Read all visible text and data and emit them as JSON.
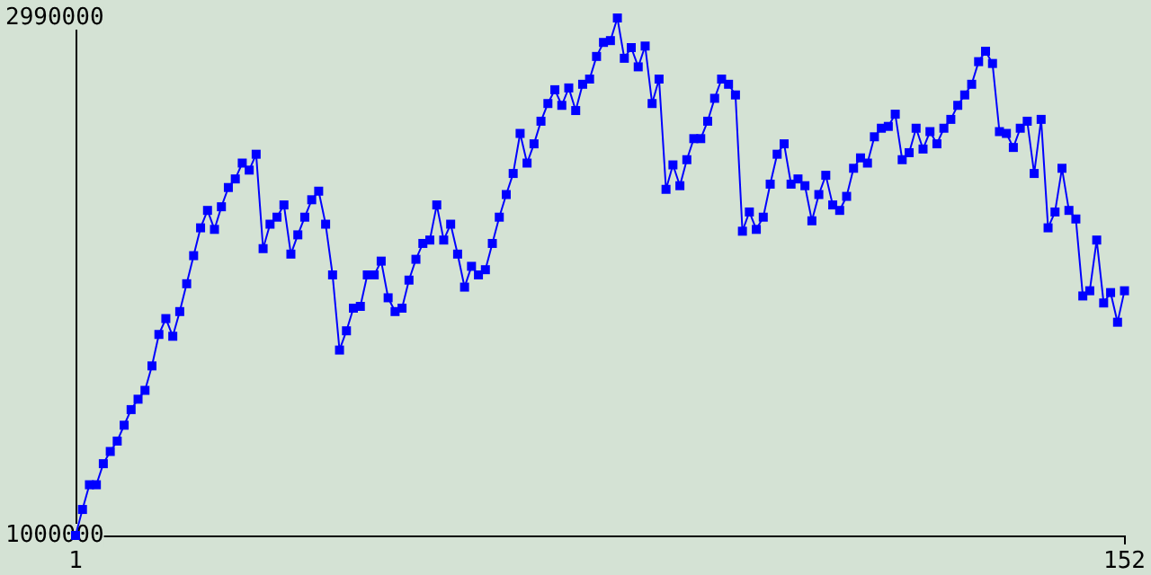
{
  "chart_data": {
    "type": "line",
    "marker": "square",
    "grid": false,
    "line_style": "solid",
    "xlim": [
      1,
      152
    ],
    "xticks": [
      1,
      152
    ],
    "ylim": [
      1000000,
      2990000
    ],
    "yticks": [
      1000000,
      2990000
    ],
    "x": [
      1,
      2,
      3,
      4,
      5,
      6,
      7,
      8,
      9,
      10,
      11,
      12,
      13,
      14,
      15,
      16,
      17,
      18,
      19,
      20,
      21,
      22,
      23,
      24,
      25,
      26,
      27,
      28,
      29,
      30,
      31,
      32,
      33,
      34,
      35,
      36,
      37,
      38,
      39,
      40,
      41,
      42,
      43,
      44,
      45,
      46,
      47,
      48,
      49,
      50,
      51,
      52,
      53,
      54,
      55,
      56,
      57,
      58,
      59,
      60,
      61,
      62,
      63,
      64,
      65,
      66,
      67,
      68,
      69,
      70,
      71,
      72,
      73,
      74,
      75,
      76,
      77,
      78,
      79,
      80,
      81,
      82,
      83,
      84,
      85,
      86,
      87,
      88,
      89,
      90,
      91,
      92,
      93,
      94,
      95,
      96,
      97,
      98,
      99,
      100,
      101,
      102,
      103,
      104,
      105,
      106,
      107,
      108,
      109,
      110,
      111,
      112,
      113,
      114,
      115,
      116,
      117,
      118,
      119,
      120,
      121,
      122,
      123,
      124,
      125,
      126,
      127,
      128,
      129,
      130,
      131,
      132,
      133,
      134,
      135,
      136,
      137,
      138,
      139,
      140,
      141,
      142,
      143,
      144,
      145,
      146,
      147,
      148,
      149,
      150,
      151,
      152
    ],
    "series": [
      {
        "color": "#0000ff",
        "values": [
          1000000,
          1100000,
          1195000,
          1195000,
          1276000,
          1323000,
          1363000,
          1424000,
          1484000,
          1524000,
          1558000,
          1652000,
          1773000,
          1834000,
          1766000,
          1861000,
          1968000,
          2076000,
          2183000,
          2250000,
          2177000,
          2264000,
          2338000,
          2371000,
          2432000,
          2405000,
          2466000,
          2103000,
          2197000,
          2224000,
          2271000,
          2082000,
          2156000,
          2224000,
          2291000,
          2324000,
          2197000,
          2002000,
          1713000,
          1787000,
          1874000,
          1881000,
          2002000,
          2002000,
          2055000,
          1914000,
          1861000,
          1874000,
          1982000,
          2062000,
          2123000,
          2136000,
          2271000,
          2136000,
          2197000,
          2082000,
          1955000,
          2035000,
          2002000,
          2022000,
          2123000,
          2224000,
          2311000,
          2392000,
          2546000,
          2432000,
          2506000,
          2593000,
          2661000,
          2714000,
          2654000,
          2721000,
          2634000,
          2735000,
          2755000,
          2842000,
          2896000,
          2903000,
          2990000,
          2835000,
          2876000,
          2802000,
          2882000,
          2661000,
          2755000,
          2331000,
          2425000,
          2345000,
          2445000,
          2526000,
          2526000,
          2593000,
          2681000,
          2755000,
          2735000,
          2694000,
          2170000,
          2244000,
          2177000,
          2224000,
          2351000,
          2466000,
          2506000,
          2351000,
          2371000,
          2345000,
          2210000,
          2311000,
          2385000,
          2271000,
          2250000,
          2304000,
          2412000,
          2452000,
          2432000,
          2533000,
          2566000,
          2573000,
          2620000,
          2445000,
          2472000,
          2566000,
          2486000,
          2553000,
          2506000,
          2566000,
          2600000,
          2654000,
          2694000,
          2735000,
          2822000,
          2862000,
          2815000,
          2553000,
          2546000,
          2492000,
          2566000,
          2593000,
          2392000,
          2600000,
          2183000,
          2244000,
          2412000,
          2250000,
          2217000,
          1921000,
          1941000,
          2136000,
          1894000,
          1934000,
          1820000,
          1941000
        ]
      }
    ]
  }
}
